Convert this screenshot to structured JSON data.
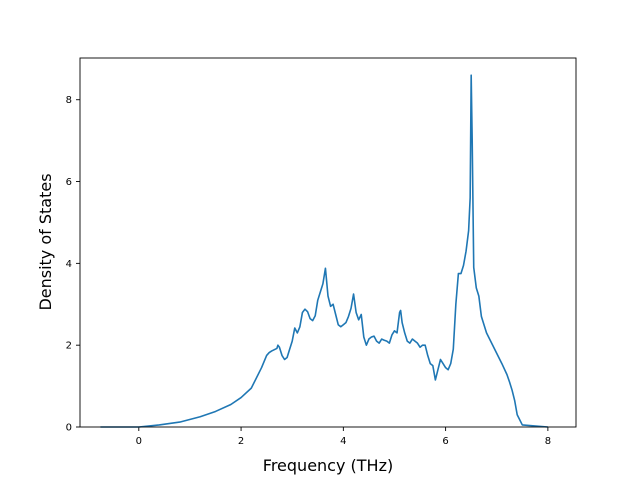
{
  "chart_data": {
    "type": "line",
    "title": "",
    "xlabel": "Frequency (THz)",
    "ylabel": "Density of States",
    "xlim": [
      -1.15,
      8.55
    ],
    "ylim": [
      0,
      9.02
    ],
    "xticks": [
      0,
      2,
      4,
      6,
      8
    ],
    "yticks": [
      0,
      2,
      4,
      6,
      8
    ],
    "xtick_labels": [
      "0",
      "2",
      "4",
      "6",
      "8"
    ],
    "ytick_labels": [
      "0",
      "2",
      "4",
      "6",
      "8"
    ],
    "grid": false,
    "legend": "none",
    "series": [
      {
        "color": "#1f77b4",
        "x": [
          -0.75,
          -0.4,
          0.0,
          0.4,
          0.8,
          1.2,
          1.5,
          1.8,
          2.0,
          2.2,
          2.4,
          2.5,
          2.55,
          2.6,
          2.7,
          2.72,
          2.75,
          2.8,
          2.85,
          2.9,
          2.95,
          3.0,
          3.05,
          3.1,
          3.15,
          3.2,
          3.25,
          3.3,
          3.35,
          3.4,
          3.45,
          3.5,
          3.55,
          3.6,
          3.65,
          3.7,
          3.75,
          3.8,
          3.85,
          3.9,
          3.95,
          4.0,
          4.05,
          4.1,
          4.15,
          4.2,
          4.25,
          4.3,
          4.35,
          4.4,
          4.45,
          4.5,
          4.55,
          4.6,
          4.65,
          4.7,
          4.75,
          4.8,
          4.85,
          4.9,
          4.95,
          5.0,
          5.05,
          5.1,
          5.12,
          5.15,
          5.2,
          5.25,
          5.3,
          5.35,
          5.4,
          5.45,
          5.5,
          5.55,
          5.6,
          5.65,
          5.7,
          5.75,
          5.8,
          5.85,
          5.9,
          5.95,
          6.0,
          6.05,
          6.1,
          6.15,
          6.2,
          6.25,
          6.3,
          6.35,
          6.4,
          6.45,
          6.48,
          6.5,
          6.52,
          6.55,
          6.6,
          6.65,
          6.7,
          6.8,
          6.9,
          7.0,
          7.1,
          7.2,
          7.25,
          7.3,
          7.35,
          7.4,
          7.5,
          8.0
        ],
        "y": [
          0.0,
          0.0,
          0.0,
          0.05,
          0.12,
          0.25,
          0.38,
          0.55,
          0.72,
          0.95,
          1.45,
          1.75,
          1.82,
          1.86,
          1.92,
          2.0,
          1.95,
          1.75,
          1.65,
          1.7,
          1.9,
          2.1,
          2.42,
          2.3,
          2.45,
          2.8,
          2.88,
          2.82,
          2.65,
          2.6,
          2.72,
          3.1,
          3.3,
          3.5,
          3.88,
          3.2,
          2.95,
          3.0,
          2.75,
          2.5,
          2.45,
          2.5,
          2.55,
          2.7,
          2.9,
          3.25,
          2.8,
          2.62,
          2.75,
          2.2,
          2.0,
          2.15,
          2.2,
          2.22,
          2.1,
          2.05,
          2.15,
          2.12,
          2.1,
          2.05,
          2.25,
          2.35,
          2.3,
          2.8,
          2.85,
          2.55,
          2.3,
          2.1,
          2.05,
          2.15,
          2.1,
          2.05,
          1.95,
          2.0,
          2.0,
          1.75,
          1.55,
          1.5,
          1.15,
          1.4,
          1.65,
          1.55,
          1.45,
          1.4,
          1.55,
          1.9,
          3.0,
          3.75,
          3.75,
          3.95,
          4.3,
          4.8,
          5.6,
          8.6,
          7.0,
          3.9,
          3.4,
          3.2,
          2.7,
          2.3,
          2.05,
          1.8,
          1.55,
          1.28,
          1.1,
          0.9,
          0.65,
          0.3,
          0.05,
          0.0
        ]
      }
    ]
  }
}
